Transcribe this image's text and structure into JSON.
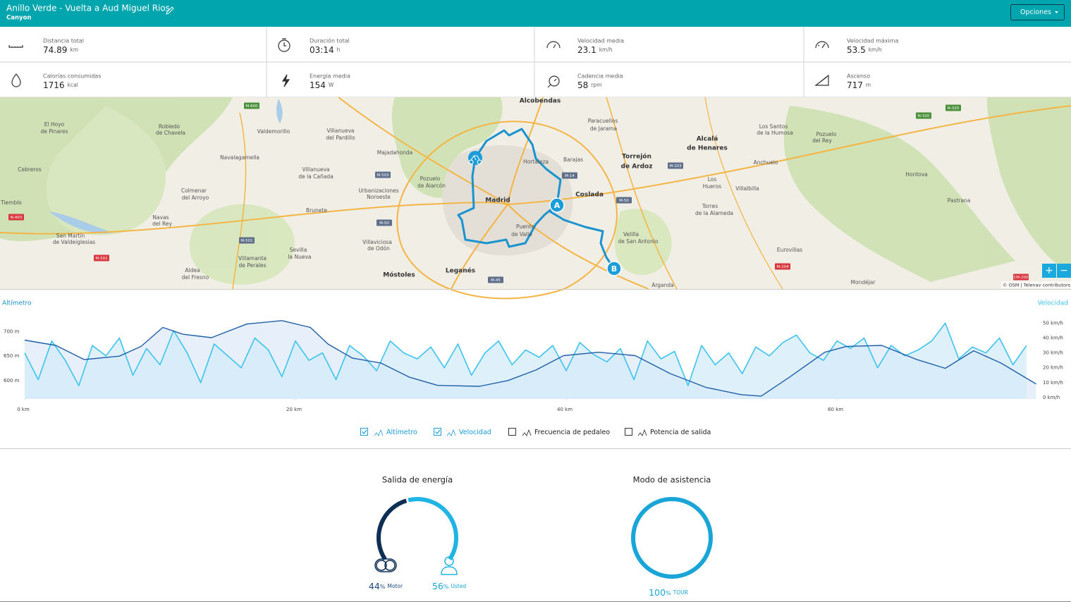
{
  "header": {
    "title": "Anillo Verde - Vuelta a Aud Miguel Rios",
    "subtitle": "Canyon",
    "button": "Opciones"
  },
  "stats": [
    {
      "label": "Distancia total",
      "value": "74.89",
      "unit": "km"
    },
    {
      "label": "Duración total",
      "value": "03:14",
      "unit": "h"
    },
    {
      "label": "Velocidad media",
      "value": "23.1",
      "unit": "km/h"
    },
    {
      "label": "Velocidad máxima",
      "value": "53.5",
      "unit": "km/h"
    },
    {
      "label": "Calorías consumidas",
      "value": "1716",
      "unit": "kcal"
    },
    {
      "label": "Energía media",
      "value": "154",
      "unit": "W"
    },
    {
      "label": "Cadencia media",
      "value": "58",
      "unit": "rpm"
    },
    {
      "label": "Ascenso",
      "value": "717",
      "unit": "m"
    }
  ],
  "map": {
    "labels": [
      "El Hoyo",
      "de Pinares",
      "Robledo",
      "de Chavela",
      "Valdemorillo",
      "Villanueva",
      "del Pardillo",
      "Majadahonda",
      "Navalagamella",
      "Cebreros",
      "Villanueva",
      "de la Cañada",
      "Pozuelo",
      "de Alarcón",
      "Colmenar",
      "del Arroyo",
      "Urbanizaciones",
      "Noroeste",
      "Tiemblo",
      "Brunete",
      "Navas",
      "del Rey",
      "San Martín",
      "de Valdeiglesias",
      "Villaviciosa",
      "de Odón",
      "Sevilla",
      "la Nueva",
      "Villamanta",
      "de Perales",
      "Aldea",
      "del Fresno",
      "Móstoles",
      "Leganés",
      "Madrid",
      "Alcobendas",
      "Hortaleza",
      "Barajas",
      "Coslada",
      "Puente",
      "de Valle",
      "Paracuellos",
      "de Jarama",
      "Torrejón",
      "de Ardoz",
      "Alcalá",
      "de Henares",
      "Los Santos",
      "de la Humosa",
      "Anchuelo",
      "Villalbilla",
      "Los",
      "Hueros",
      "Torres",
      "de la Alameda",
      "Pozuelo",
      "del Rey",
      "Hontova",
      "Pastrana",
      "Mondéjar",
      "Eurovillas",
      "Velilla",
      "de San Antonio",
      "Arganda"
    ],
    "shields": [
      "M-600",
      "M-503",
      "M-50",
      "M-501",
      "M-501",
      "N-403",
      "M-14",
      "M-203",
      "M-50",
      "M-204",
      "CM-200",
      "N-320",
      "N-320",
      "M-45"
    ],
    "markers": [
      "A",
      "B"
    ],
    "zoom": [
      "+",
      "−"
    ],
    "attribution": "© OSM | Telenav contributors"
  },
  "profile": {
    "type": "line",
    "left_title": "Altímetro",
    "right_title": "Velocidad",
    "xlim": [
      0,
      74.89
    ],
    "xticks": [
      {
        "value": 0,
        "label": "0 km"
      },
      {
        "value": 20,
        "label": "20 km"
      },
      {
        "value": 40,
        "label": "40 km"
      },
      {
        "value": 60,
        "label": "60 km"
      }
    ],
    "ylim": [
      562,
      730
    ],
    "yticks": [
      {
        "value": 600,
        "label": "600 m"
      },
      {
        "value": 650,
        "label": "650 m"
      },
      {
        "value": 700,
        "label": "700 m"
      }
    ],
    "y2lim": [
      -1,
      54
    ],
    "y2ticks": [
      {
        "value": 0,
        "label": "0 km/h"
      },
      {
        "value": 10,
        "label": "10 km/h"
      },
      {
        "value": 20,
        "label": "20 km/h"
      },
      {
        "value": 30,
        "label": "30 km/h"
      },
      {
        "value": 40,
        "label": "40 km/h"
      },
      {
        "value": 50,
        "label": "50 km/h"
      }
    ],
    "series": [
      {
        "name": "Altímetro",
        "color": "#1f5ea8",
        "x": [
          0,
          2.3,
          4.4,
          7.0,
          8.6,
          10.2,
          11.7,
          13.8,
          16.4,
          19.0,
          21.1,
          22.4,
          24.2,
          26.3,
          28.4,
          30.5,
          33.6,
          35.7,
          37.8,
          39.8,
          42.4,
          45.1,
          47.7,
          50.3,
          52.9,
          54.4,
          56.5,
          59.1,
          60.7,
          63.3,
          65.9,
          68.0,
          70.1,
          72.1,
          74.7
        ],
        "values": [
          683,
          672,
          643,
          650,
          670,
          709,
          695,
          688,
          716,
          723,
          709,
          675,
          646,
          636,
          607,
          590,
          588,
          600,
          622,
          651,
          658,
          651,
          614,
          586,
          571,
          568,
          607,
          658,
          670,
          672,
          643,
          625,
          661,
          636,
          593
        ]
      },
      {
        "name": "Velocidad",
        "color": "#3cc3ef",
        "axis": "y2",
        "x": [
          0,
          1,
          2,
          3,
          4,
          5,
          6,
          7,
          8,
          9,
          10,
          11,
          12,
          13,
          14,
          15,
          16,
          17,
          18,
          19,
          20,
          21,
          22,
          23,
          24,
          25,
          26,
          27,
          28,
          29,
          30,
          31,
          32,
          33,
          34,
          35,
          36,
          37,
          38,
          39,
          40,
          41,
          42,
          43,
          44,
          45,
          46,
          47,
          48,
          49,
          50,
          51,
          52,
          53,
          54,
          55,
          56,
          57,
          58,
          59,
          60,
          61,
          62,
          63,
          64,
          65,
          66,
          67,
          68,
          69,
          70,
          71,
          72,
          73,
          74
        ],
        "values": [
          30,
          12,
          38,
          25,
          8,
          35,
          28,
          40,
          15,
          33,
          22,
          45,
          30,
          10,
          36,
          28,
          20,
          40,
          32,
          14,
          38,
          25,
          30,
          12,
          35,
          28,
          18,
          38,
          30,
          26,
          34,
          20,
          36,
          15,
          30,
          38,
          22,
          32,
          27,
          35,
          18,
          37,
          29,
          24,
          33,
          12,
          38,
          26,
          31,
          8,
          35,
          22,
          30,
          16,
          34,
          28,
          37,
          42,
          30,
          25,
          38,
          33,
          40,
          20,
          35,
          28,
          32,
          38,
          50,
          26,
          34,
          30,
          40,
          22,
          35
        ]
      }
    ],
    "legend": [
      {
        "name": "Altímetro",
        "checked": true
      },
      {
        "name": "Velocidad",
        "checked": true
      },
      {
        "name": "Frecuencia de pedaleo",
        "checked": false
      },
      {
        "name": "Potencia de salida",
        "checked": false
      }
    ]
  },
  "energy": {
    "title": "Salida de energía",
    "segments": [
      {
        "value": 44,
        "unit": "%",
        "name": "Motor",
        "color": "#0d2f55"
      },
      {
        "value": 56,
        "unit": "%",
        "name": "Usted",
        "color": "#1fb4e4"
      }
    ]
  },
  "assist": {
    "title": "Modo de asistencia",
    "segments": [
      {
        "value": 100,
        "unit": "%",
        "name": "TOUR",
        "color": "#1aa5d8"
      }
    ]
  }
}
